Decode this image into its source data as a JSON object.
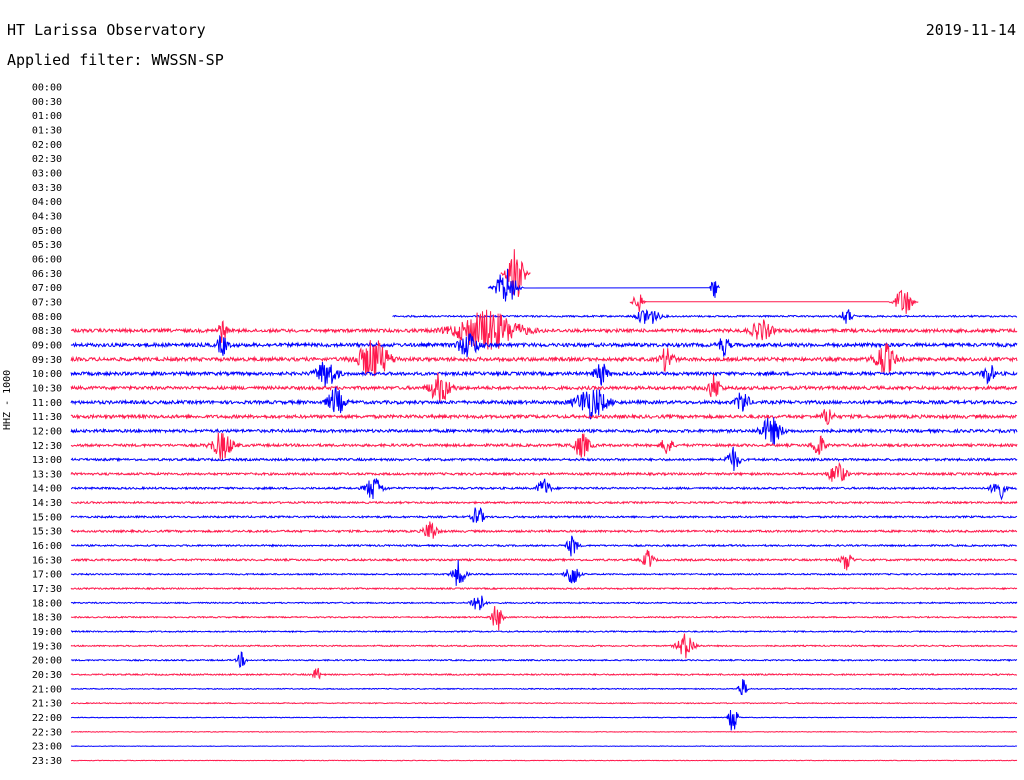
{
  "header": {
    "station": "HT Larissa Observatory",
    "date": "2019-11-14",
    "filter_text": "Applied filter: WWSSN-SP"
  },
  "chart_data": {
    "type": "line",
    "title": "HT Larissa Observatory",
    "subtitle": "Applied filter: WWSSN-SP",
    "date": "2019-11-14",
    "ylabel": "HHZ - 1000",
    "xlabel": "",
    "row_labels": [
      "00:00",
      "00:30",
      "01:00",
      "01:30",
      "02:00",
      "02:30",
      "03:00",
      "03:30",
      "04:00",
      "04:30",
      "05:00",
      "05:30",
      "06:00",
      "06:30",
      "07:00",
      "07:30",
      "08:00",
      "08:30",
      "09:00",
      "09:30",
      "10:00",
      "10:30",
      "11:00",
      "11:30",
      "12:00",
      "12:30",
      "13:00",
      "13:30",
      "14:00",
      "14:30",
      "15:00",
      "15:30",
      "16:00",
      "16:30",
      "17:00",
      "17:30",
      "18:00",
      "18:30",
      "19:00",
      "19:30",
      "20:00",
      "20:30",
      "21:00",
      "21:30",
      "22:00",
      "22:30",
      "23:00",
      "23:30"
    ],
    "first_trace_row": "08:00",
    "first_trace_start_fraction": 0.34,
    "colors": {
      "even_row": "#0000ff",
      "odd_row": "#ff1a4d"
    },
    "noise_level_by_row": {
      "08:00": 0.25,
      "08:30": 0.5,
      "09:00": 0.55,
      "09:30": 0.55,
      "10:00": 0.5,
      "10:30": 0.5,
      "11:00": 0.5,
      "11:30": 0.5,
      "12:00": 0.45,
      "12:30": 0.4,
      "13:00": 0.35,
      "13:30": 0.35,
      "14:00": 0.3,
      "14:30": 0.28,
      "15:00": 0.28,
      "15:30": 0.32,
      "16:00": 0.25,
      "16:30": 0.3,
      "17:00": 0.22,
      "17:30": 0.22,
      "18:00": 0.2,
      "18:30": 0.2,
      "19:00": 0.2,
      "19:30": 0.2,
      "20:00": 0.2,
      "20:30": 0.22,
      "21:00": 0.15,
      "21:30": 0.15,
      "22:00": 0.1,
      "22:30": 0.1,
      "23:00": 0.08,
      "23:30": 0.08
    },
    "bursts": [
      {
        "row": "06:30",
        "pos": 0.47,
        "amp": 3.2,
        "w": 0.008
      },
      {
        "row": "07:00",
        "pos": 0.46,
        "amp": 2.0,
        "w": 0.01
      },
      {
        "row": "07:30",
        "pos": 0.6,
        "amp": 1.2,
        "w": 0.005
      },
      {
        "row": "07:30",
        "pos": 0.88,
        "amp": 1.6,
        "w": 0.008
      },
      {
        "row": "07:00",
        "pos": 0.68,
        "amp": 1.5,
        "w": 0.003
      },
      {
        "row": "08:00",
        "pos": 0.61,
        "amp": 1.0,
        "w": 0.01
      },
      {
        "row": "08:00",
        "pos": 0.82,
        "amp": 0.8,
        "w": 0.005
      },
      {
        "row": "08:30",
        "pos": 0.16,
        "amp": 1.2,
        "w": 0.004
      },
      {
        "row": "08:30",
        "pos": 0.44,
        "amp": 2.0,
        "w": 0.03
      },
      {
        "row": "08:30",
        "pos": 0.73,
        "amp": 1.0,
        "w": 0.01
      },
      {
        "row": "09:00",
        "pos": 0.16,
        "amp": 1.0,
        "w": 0.005
      },
      {
        "row": "09:00",
        "pos": 0.42,
        "amp": 1.2,
        "w": 0.01
      },
      {
        "row": "09:00",
        "pos": 0.69,
        "amp": 1.0,
        "w": 0.005
      },
      {
        "row": "09:30",
        "pos": 0.32,
        "amp": 2.0,
        "w": 0.015
      },
      {
        "row": "09:30",
        "pos": 0.63,
        "amp": 1.3,
        "w": 0.006
      },
      {
        "row": "09:30",
        "pos": 0.86,
        "amp": 1.6,
        "w": 0.01
      },
      {
        "row": "10:00",
        "pos": 0.27,
        "amp": 1.4,
        "w": 0.01
      },
      {
        "row": "10:00",
        "pos": 0.56,
        "amp": 1.2,
        "w": 0.006
      },
      {
        "row": "10:00",
        "pos": 0.97,
        "amp": 1.2,
        "w": 0.005
      },
      {
        "row": "10:30",
        "pos": 0.39,
        "amp": 1.5,
        "w": 0.01
      },
      {
        "row": "10:30",
        "pos": 0.68,
        "amp": 1.3,
        "w": 0.006
      },
      {
        "row": "11:00",
        "pos": 0.28,
        "amp": 1.4,
        "w": 0.008
      },
      {
        "row": "11:00",
        "pos": 0.55,
        "amp": 1.6,
        "w": 0.015
      },
      {
        "row": "11:00",
        "pos": 0.71,
        "amp": 1.2,
        "w": 0.006
      },
      {
        "row": "11:30",
        "pos": 0.8,
        "amp": 1.0,
        "w": 0.005
      },
      {
        "row": "12:00",
        "pos": 0.74,
        "amp": 1.4,
        "w": 0.01
      },
      {
        "row": "12:30",
        "pos": 0.16,
        "amp": 1.4,
        "w": 0.01
      },
      {
        "row": "12:30",
        "pos": 0.54,
        "amp": 1.2,
        "w": 0.008
      },
      {
        "row": "12:30",
        "pos": 0.63,
        "amp": 1.1,
        "w": 0.005
      },
      {
        "row": "12:30",
        "pos": 0.79,
        "amp": 1.2,
        "w": 0.006
      },
      {
        "row": "13:00",
        "pos": 0.7,
        "amp": 1.2,
        "w": 0.006
      },
      {
        "row": "13:30",
        "pos": 0.81,
        "amp": 1.2,
        "w": 0.008
      },
      {
        "row": "14:00",
        "pos": 0.32,
        "amp": 1.2,
        "w": 0.008
      },
      {
        "row": "14:00",
        "pos": 0.5,
        "amp": 1.0,
        "w": 0.006
      },
      {
        "row": "14:00",
        "pos": 0.98,
        "amp": 1.4,
        "w": 0.006
      },
      {
        "row": "15:00",
        "pos": 0.43,
        "amp": 1.2,
        "w": 0.005
      },
      {
        "row": "15:30",
        "pos": 0.38,
        "amp": 1.2,
        "w": 0.006
      },
      {
        "row": "16:00",
        "pos": 0.53,
        "amp": 1.1,
        "w": 0.005
      },
      {
        "row": "16:30",
        "pos": 0.61,
        "amp": 1.0,
        "w": 0.005
      },
      {
        "row": "16:30",
        "pos": 0.82,
        "amp": 1.1,
        "w": 0.005
      },
      {
        "row": "17:00",
        "pos": 0.41,
        "amp": 1.4,
        "w": 0.006
      },
      {
        "row": "17:00",
        "pos": 0.53,
        "amp": 1.3,
        "w": 0.006
      },
      {
        "row": "18:00",
        "pos": 0.43,
        "amp": 1.2,
        "w": 0.006
      },
      {
        "row": "18:30",
        "pos": 0.45,
        "amp": 1.5,
        "w": 0.005
      },
      {
        "row": "19:30",
        "pos": 0.65,
        "amp": 1.3,
        "w": 0.008
      },
      {
        "row": "20:00",
        "pos": 0.18,
        "amp": 0.8,
        "w": 0.004
      },
      {
        "row": "20:30",
        "pos": 0.26,
        "amp": 0.7,
        "w": 0.004
      },
      {
        "row": "21:00",
        "pos": 0.71,
        "amp": 1.0,
        "w": 0.004
      },
      {
        "row": "22:00",
        "pos": 0.7,
        "amp": 1.7,
        "w": 0.004
      }
    ]
  }
}
